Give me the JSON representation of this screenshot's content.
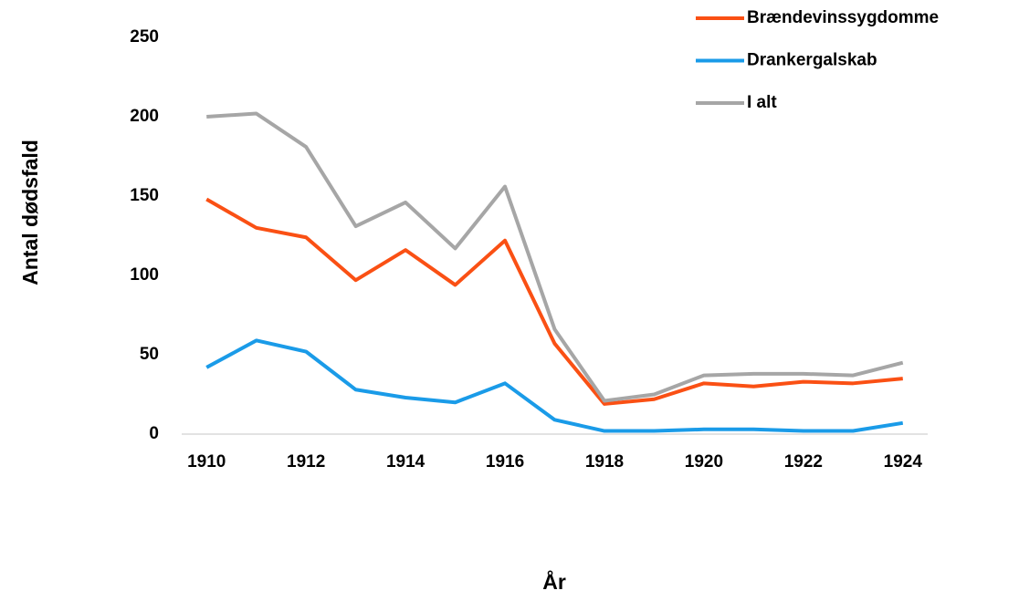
{
  "chart_data": {
    "type": "line",
    "x": [
      1910,
      1911,
      1912,
      1913,
      1914,
      1915,
      1916,
      1917,
      1918,
      1919,
      1920,
      1921,
      1922,
      1923,
      1924
    ],
    "series": [
      {
        "name": "Brændevinssygdomme",
        "color": "#fa5014",
        "values": [
          148,
          130,
          124,
          97,
          116,
          94,
          122,
          57,
          19,
          22,
          32,
          30,
          33,
          32,
          35
        ]
      },
      {
        "name": "Drankergalskab",
        "color": "#1a9be8",
        "values": [
          42,
          59,
          52,
          28,
          23,
          20,
          32,
          9,
          2,
          2,
          3,
          3,
          2,
          2,
          7
        ]
      },
      {
        "name": "I alt",
        "color": "#a6a6a6",
        "values": [
          200,
          202,
          181,
          131,
          146,
          117,
          156,
          66,
          21,
          25,
          37,
          38,
          38,
          37,
          45
        ]
      }
    ],
    "xlabel": "År",
    "ylabel": "Antal dødsfald",
    "xlim": [
      1909.5,
      1924.5
    ],
    "xticks": [
      1910,
      1912,
      1914,
      1916,
      1918,
      1920,
      1922,
      1924
    ],
    "ylim": [
      0,
      250
    ],
    "yticks": [
      0,
      50,
      100,
      150,
      200,
      250
    ],
    "grid": false,
    "legend": "upper right"
  }
}
